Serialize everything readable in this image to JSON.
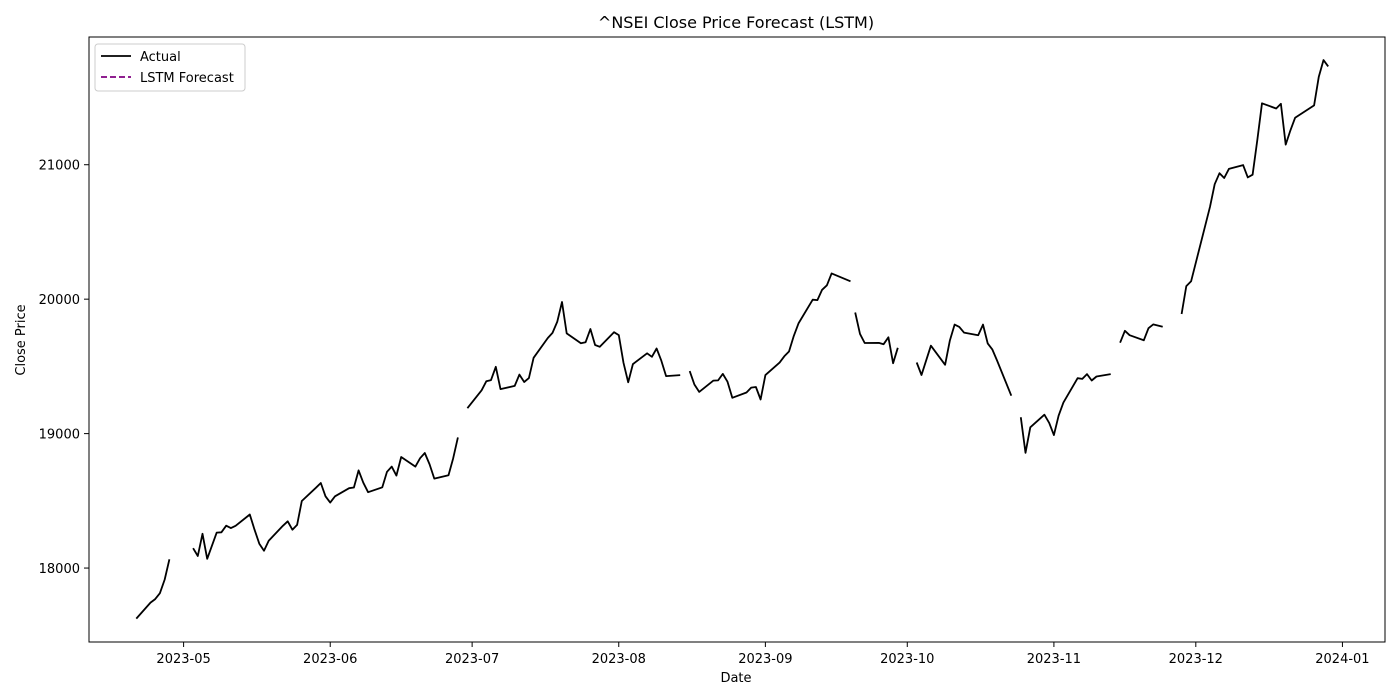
{
  "chart_data": {
    "type": "line",
    "title": "^NSEI Close Price Forecast (LSTM)",
    "xlabel": "Date",
    "ylabel": "Close Price",
    "x_ticks": [
      "2023-05",
      "2023-06",
      "2023-07",
      "2023-08",
      "2023-09",
      "2023-10",
      "2023-11",
      "2023-12",
      "2024-01"
    ],
    "y_ticks": [
      18000,
      19000,
      20000,
      21000
    ],
    "xlim": [
      "2023-04-11",
      "2024-01-10"
    ],
    "ylim": [
      17450,
      21950
    ],
    "grid": false,
    "legend_position": "top-left",
    "legend": [
      {
        "label": "Actual",
        "color": "#000000",
        "style": "solid"
      },
      {
        "label": "LSTM Forecast",
        "color": "#800080",
        "style": "dashed"
      }
    ],
    "series": [
      {
        "name": "Actual",
        "color": "#000000",
        "segments": [
          [
            [
              "2023-04-21",
              17624
            ],
            [
              "2023-04-24",
              17743
            ],
            [
              "2023-04-25",
              17769
            ],
            [
              "2023-04-26",
              17813
            ],
            [
              "2023-04-27",
              17915
            ],
            [
              "2023-04-28",
              18065
            ]
          ],
          [
            [
              "2023-05-03",
              18148
            ],
            [
              "2023-05-04",
              18090
            ],
            [
              "2023-05-05",
              18255
            ],
            [
              "2023-05-06",
              18069
            ],
            [
              "2023-05-08",
              18264
            ],
            [
              "2023-05-09",
              18266
            ],
            [
              "2023-05-10",
              18315
            ],
            [
              "2023-05-11",
              18297
            ],
            [
              "2023-05-12",
              18314
            ],
            [
              "2023-05-15",
              18398
            ],
            [
              "2023-05-16",
              18286
            ],
            [
              "2023-05-17",
              18181
            ],
            [
              "2023-05-18",
              18129
            ],
            [
              "2023-05-19",
              18203
            ],
            [
              "2023-05-22",
              18314
            ],
            [
              "2023-05-23",
              18348
            ],
            [
              "2023-05-24",
              18285
            ],
            [
              "2023-05-25",
              18321
            ],
            [
              "2023-05-26",
              18499
            ],
            [
              "2023-05-29",
              18598
            ],
            [
              "2023-05-30",
              18633
            ],
            [
              "2023-05-31",
              18534
            ],
            [
              "2023-06-01",
              18487
            ],
            [
              "2023-06-02",
              18534
            ],
            [
              "2023-06-05",
              18594
            ],
            [
              "2023-06-06",
              18599
            ],
            [
              "2023-06-07",
              18726
            ],
            [
              "2023-06-08",
              18635
            ],
            [
              "2023-06-09",
              18564
            ],
            [
              "2023-06-12",
              18601
            ],
            [
              "2023-06-13",
              18716
            ],
            [
              "2023-06-14",
              18755
            ],
            [
              "2023-06-15",
              18688
            ],
            [
              "2023-06-16",
              18826
            ],
            [
              "2023-06-19",
              18755
            ],
            [
              "2023-06-20",
              18817
            ],
            [
              "2023-06-21",
              18856
            ],
            [
              "2023-06-22",
              18771
            ],
            [
              "2023-06-23",
              18665
            ],
            [
              "2023-06-26",
              18691
            ],
            [
              "2023-06-27",
              18817
            ],
            [
              "2023-06-28",
              18972
            ]
          ],
          [
            [
              "2023-06-30",
              19189
            ],
            [
              "2023-07-03",
              19322
            ],
            [
              "2023-07-04",
              19389
            ],
            [
              "2023-07-05",
              19398
            ],
            [
              "2023-07-06",
              19497
            ],
            [
              "2023-07-07",
              19331
            ],
            [
              "2023-07-10",
              19355
            ],
            [
              "2023-07-11",
              19439
            ],
            [
              "2023-07-12",
              19384
            ],
            [
              "2023-07-13",
              19413
            ],
            [
              "2023-07-14",
              19564
            ],
            [
              "2023-07-17",
              19711
            ],
            [
              "2023-07-18",
              19749
            ],
            [
              "2023-07-19",
              19833
            ],
            [
              "2023-07-20",
              19979
            ],
            [
              "2023-07-21",
              19745
            ],
            [
              "2023-07-24",
              19672
            ],
            [
              "2023-07-25",
              19680
            ],
            [
              "2023-07-26",
              19778
            ],
            [
              "2023-07-27",
              19659
            ],
            [
              "2023-07-28",
              19646
            ],
            [
              "2023-07-31",
              19754
            ],
            [
              "2023-08-01",
              19733
            ],
            [
              "2023-08-02",
              19527
            ],
            [
              "2023-08-03",
              19382
            ],
            [
              "2023-08-04",
              19517
            ],
            [
              "2023-08-07",
              19597
            ],
            [
              "2023-08-08",
              19571
            ],
            [
              "2023-08-09",
              19633
            ],
            [
              "2023-08-10",
              19543
            ],
            [
              "2023-08-11",
              19428
            ],
            [
              "2023-08-14",
              19435
            ]
          ],
          [
            [
              "2023-08-16",
              19465
            ],
            [
              "2023-08-17",
              19365
            ],
            [
              "2023-08-18",
              19310
            ],
            [
              "2023-08-21",
              19394
            ],
            [
              "2023-08-22",
              19396
            ],
            [
              "2023-08-23",
              19444
            ],
            [
              "2023-08-24",
              19386
            ],
            [
              "2023-08-25",
              19266
            ],
            [
              "2023-08-28",
              19306
            ],
            [
              "2023-08-29",
              19342
            ],
            [
              "2023-08-30",
              19347
            ],
            [
              "2023-08-31",
              19254
            ],
            [
              "2023-09-01",
              19435
            ],
            [
              "2023-09-04",
              19528
            ],
            [
              "2023-09-05",
              19575
            ],
            [
              "2023-09-06",
              19611
            ],
            [
              "2023-09-07",
              19727
            ],
            [
              "2023-09-08",
              19820
            ],
            [
              "2023-09-11",
              19996
            ],
            [
              "2023-09-12",
              19993
            ],
            [
              "2023-09-13",
              20070
            ],
            [
              "2023-09-14",
              20103
            ],
            [
              "2023-09-15",
              20192
            ],
            [
              "2023-09-19",
              20133
            ]
          ],
          [
            [
              "2023-09-20",
              19901
            ],
            [
              "2023-09-21",
              19742
            ],
            [
              "2023-09-22",
              19674
            ],
            [
              "2023-09-25",
              19675
            ],
            [
              "2023-09-26",
              19665
            ],
            [
              "2023-09-27",
              19716
            ],
            [
              "2023-09-28",
              19524
            ],
            [
              "2023-09-29",
              19638
            ]
          ],
          [
            [
              "2023-10-03",
              19529
            ],
            [
              "2023-10-04",
              19436
            ],
            [
              "2023-10-05",
              19545
            ],
            [
              "2023-10-06",
              19654
            ],
            [
              "2023-10-09",
              19512
            ],
            [
              "2023-10-10",
              19690
            ],
            [
              "2023-10-11",
              19811
            ],
            [
              "2023-10-12",
              19794
            ],
            [
              "2023-10-13",
              19751
            ],
            [
              "2023-10-16",
              19732
            ],
            [
              "2023-10-17",
              19811
            ],
            [
              "2023-10-18",
              19671
            ],
            [
              "2023-10-19",
              19625
            ],
            [
              "2023-10-20",
              19543
            ],
            [
              "2023-10-23",
              19282
            ]
          ],
          [
            [
              "2023-10-25",
              19122
            ],
            [
              "2023-10-26",
              18857
            ],
            [
              "2023-10-27",
              19047
            ],
            [
              "2023-10-30",
              19141
            ],
            [
              "2023-10-31",
              19080
            ],
            [
              "2023-11-01",
              18989
            ],
            [
              "2023-11-02",
              19133
            ],
            [
              "2023-11-03",
              19231
            ],
            [
              "2023-11-06",
              19412
            ],
            [
              "2023-11-07",
              19407
            ],
            [
              "2023-11-08",
              19443
            ],
            [
              "2023-11-09",
              19395
            ],
            [
              "2023-11-10",
              19425
            ],
            [
              "2023-11-13",
              19443
            ]
          ],
          [
            [
              "2023-11-15",
              19676
            ],
            [
              "2023-11-16",
              19765
            ],
            [
              "2023-11-17",
              19732
            ],
            [
              "2023-11-20",
              19694
            ],
            [
              "2023-11-21",
              19784
            ],
            [
              "2023-11-22",
              19812
            ],
            [
              "2023-11-24",
              19795
            ]
          ],
          [
            [
              "2023-11-28",
              19890
            ],
            [
              "2023-11-29",
              20097
            ],
            [
              "2023-11-30",
              20133
            ],
            [
              "2023-12-04",
              20687
            ],
            [
              "2023-12-05",
              20855
            ],
            [
              "2023-12-06",
              20937
            ],
            [
              "2023-12-07",
              20901
            ],
            [
              "2023-12-08",
              20969
            ],
            [
              "2023-12-11",
              20997
            ],
            [
              "2023-12-12",
              20906
            ],
            [
              "2023-12-13",
              20926
            ],
            [
              "2023-12-14",
              21183
            ],
            [
              "2023-12-15",
              21457
            ],
            [
              "2023-12-18",
              21418
            ],
            [
              "2023-12-19",
              21453
            ],
            [
              "2023-12-20",
              21150
            ],
            [
              "2023-12-21",
              21255
            ],
            [
              "2023-12-22",
              21349
            ],
            [
              "2023-12-26",
              21441
            ],
            [
              "2023-12-27",
              21655
            ],
            [
              "2023-12-28",
              21778
            ],
            [
              "2023-12-29",
              21731
            ]
          ]
        ]
      }
    ]
  }
}
